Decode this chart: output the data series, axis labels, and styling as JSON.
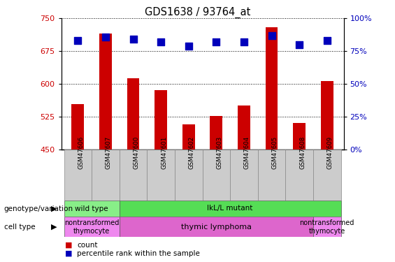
{
  "title": "GDS1638 / 93764_at",
  "samples": [
    "GSM47606",
    "GSM47607",
    "GSM47600",
    "GSM47601",
    "GSM47602",
    "GSM47603",
    "GSM47604",
    "GSM47605",
    "GSM47608",
    "GSM47609"
  ],
  "count_values": [
    553,
    715,
    613,
    585,
    507,
    527,
    550,
    730,
    510,
    607
  ],
  "percentile_values": [
    83,
    86,
    84,
    82,
    79,
    82,
    82,
    87,
    80,
    83
  ],
  "ylim_left": [
    450,
    750
  ],
  "ylim_right": [
    0,
    100
  ],
  "yticks_left": [
    450,
    525,
    600,
    675,
    750
  ],
  "yticks_right": [
    0,
    25,
    50,
    75,
    100
  ],
  "bar_color": "#cc0000",
  "dot_color": "#0000bb",
  "bar_width": 0.45,
  "dot_size": 55,
  "tick_label_color_left": "#cc0000",
  "tick_label_color_right": "#0000bb",
  "geno_groups": [
    {
      "label": "wild type",
      "start": 0,
      "end": 1,
      "color": "#88ee88"
    },
    {
      "label": "IkL/L mutant",
      "start": 2,
      "end": 9,
      "color": "#55dd55"
    }
  ],
  "cell_groups": [
    {
      "label": "nontransformed\nthymocyte",
      "start": 0,
      "end": 1,
      "color": "#ee88ee"
    },
    {
      "label": "thymic lymphoma",
      "start": 2,
      "end": 8,
      "color": "#dd66cc"
    },
    {
      "label": "nontransformed\nthymocyte",
      "start": 9,
      "end": 9,
      "color": "#ee88ee"
    }
  ],
  "legend_count_color": "#cc0000",
  "legend_dot_color": "#0000bb"
}
